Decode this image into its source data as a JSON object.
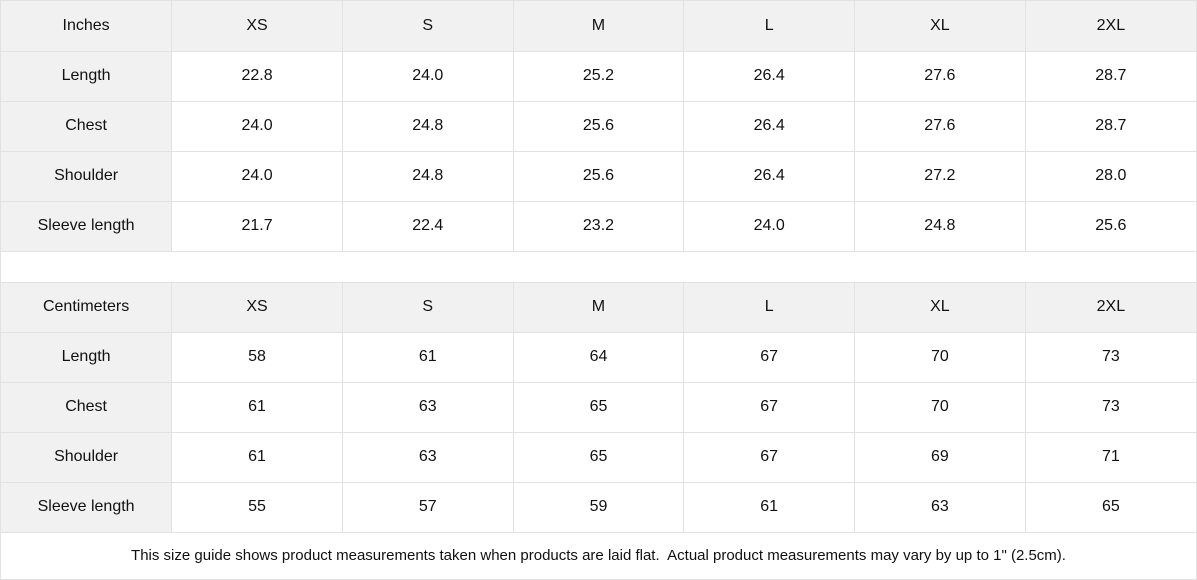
{
  "colors": {
    "header_bg": "#f1f1f1",
    "border": "#e2e2e2",
    "text": "#111111",
    "background": "#ffffff"
  },
  "tables": [
    {
      "unit_label": "Inches",
      "sizes": [
        "XS",
        "S",
        "M",
        "L",
        "XL",
        "2XL"
      ],
      "rows": [
        {
          "label": "Length",
          "values": [
            "22.8",
            "24.0",
            "25.2",
            "26.4",
            "27.6",
            "28.7"
          ]
        },
        {
          "label": "Chest",
          "values": [
            "24.0",
            "24.8",
            "25.6",
            "26.4",
            "27.6",
            "28.7"
          ]
        },
        {
          "label": "Shoulder",
          "values": [
            "24.0",
            "24.8",
            "25.6",
            "26.4",
            "27.2",
            "28.0"
          ]
        },
        {
          "label": "Sleeve length",
          "values": [
            "21.7",
            "22.4",
            "23.2",
            "24.0",
            "24.8",
            "25.6"
          ]
        }
      ]
    },
    {
      "unit_label": "Centimeters",
      "sizes": [
        "XS",
        "S",
        "M",
        "L",
        "XL",
        "2XL"
      ],
      "rows": [
        {
          "label": "Length",
          "values": [
            "58",
            "61",
            "64",
            "67",
            "70",
            "73"
          ]
        },
        {
          "label": "Chest",
          "values": [
            "61",
            "63",
            "65",
            "67",
            "70",
            "73"
          ]
        },
        {
          "label": "Shoulder",
          "values": [
            "61",
            "63",
            "65",
            "67",
            "69",
            "71"
          ]
        },
        {
          "label": "Sleeve length",
          "values": [
            "55",
            "57",
            "59",
            "61",
            "63",
            "65"
          ]
        }
      ]
    }
  ],
  "footer": {
    "note": "This size guide shows product measurements taken when products are laid flat.  Actual product measurements may vary by up to 1\" (2.5cm)."
  }
}
